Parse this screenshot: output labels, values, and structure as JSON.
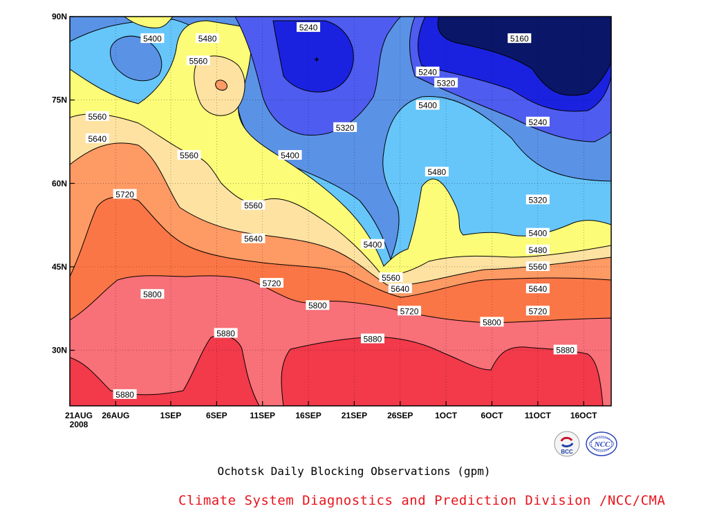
{
  "title": "Ochotsk Daily Blocking Observations (gpm)",
  "credit": "Climate System Diagnostics and Prediction Division /NCC/CMA",
  "logos": {
    "left_text": "BCC",
    "right_text": "NCC"
  },
  "chart_data": {
    "type": "contour",
    "title": "Ochotsk Daily Blocking Observations (gpm)",
    "x_ticks": [
      "21AUG",
      "26AUG",
      "1SEP",
      "6SEP",
      "11SEP",
      "16SEP",
      "21SEP",
      "26SEP",
      "1OCT",
      "6OCT",
      "11OCT",
      "16OCT"
    ],
    "x_year": "2008",
    "x_range": [
      "2008-08-21",
      "2008-10-19"
    ],
    "y_ticks": [
      "30N",
      "45N",
      "60N",
      "75N",
      "90N"
    ],
    "ylim": [
      20,
      90
    ],
    "contour_interval": 80,
    "levels": [
      5160,
      5240,
      5320,
      5400,
      5480,
      5560,
      5640,
      5720,
      5800,
      5880
    ],
    "colors": {
      "lt5160": "#0a1668",
      "5160_5240": "#1a22e0",
      "5240_5320": "#4e5cf0",
      "5320_5400": "#5a92e6",
      "5400_5480": "#66c6fa",
      "5480_5560": "#fcfc78",
      "5560_5640": "#fee2a2",
      "5640_5720": "#fe9a64",
      "5720_5800": "#fb7646",
      "5800_5880": "#f87078",
      "gt5880": "#f23a4a"
    },
    "contour_labels": [
      {
        "value": "5400",
        "date": "2008-08-30",
        "lat": 86
      },
      {
        "value": "5480",
        "date": "2008-09-05",
        "lat": 86
      },
      {
        "value": "5240",
        "date": "2008-09-16",
        "lat": 88
      },
      {
        "value": "5160",
        "date": "2008-10-09",
        "lat": 86
      },
      {
        "value": "5560",
        "date": "2008-09-04",
        "lat": 82
      },
      {
        "value": "5240",
        "date": "2008-09-29",
        "lat": 80
      },
      {
        "value": "5320",
        "date": "2008-10-01",
        "lat": 78
      },
      {
        "value": "5400",
        "date": "2008-09-29",
        "lat": 74
      },
      {
        "value": "5320",
        "date": "2008-09-20",
        "lat": 70
      },
      {
        "value": "5240",
        "date": "2008-10-11",
        "lat": 71
      },
      {
        "value": "5560",
        "date": "2008-08-24",
        "lat": 72
      },
      {
        "value": "5640",
        "date": "2008-08-24",
        "lat": 68
      },
      {
        "value": "5560",
        "date": "2008-09-03",
        "lat": 65
      },
      {
        "value": "5400",
        "date": "2008-09-14",
        "lat": 65
      },
      {
        "value": "5480",
        "date": "2008-09-30",
        "lat": 62
      },
      {
        "value": "5720",
        "date": "2008-08-27",
        "lat": 58
      },
      {
        "value": "5320",
        "date": "2008-10-11",
        "lat": 57
      },
      {
        "value": "5560",
        "date": "2008-09-10",
        "lat": 56
      },
      {
        "value": "5400",
        "date": "2008-10-11",
        "lat": 51
      },
      {
        "value": "5640",
        "date": "2008-09-10",
        "lat": 50
      },
      {
        "value": "5400",
        "date": "2008-09-23",
        "lat": 49
      },
      {
        "value": "5480",
        "date": "2008-10-11",
        "lat": 48
      },
      {
        "value": "5560",
        "date": "2008-10-11",
        "lat": 45
      },
      {
        "value": "5560",
        "date": "2008-09-25",
        "lat": 43
      },
      {
        "value": "5720",
        "date": "2008-09-12",
        "lat": 42
      },
      {
        "value": "5640",
        "date": "2008-10-11",
        "lat": 41
      },
      {
        "value": "5800",
        "date": "2008-08-30",
        "lat": 40
      },
      {
        "value": "5640",
        "date": "2008-09-26",
        "lat": 41
      },
      {
        "value": "5800",
        "date": "2008-09-17",
        "lat": 38
      },
      {
        "value": "5720",
        "date": "2008-09-27",
        "lat": 37
      },
      {
        "value": "5720",
        "date": "2008-10-11",
        "lat": 37
      },
      {
        "value": "5800",
        "date": "2008-10-06",
        "lat": 35
      },
      {
        "value": "5880",
        "date": "2008-09-07",
        "lat": 33
      },
      {
        "value": "5880",
        "date": "2008-09-23",
        "lat": 32
      },
      {
        "value": "5880",
        "date": "2008-10-14",
        "lat": 30
      },
      {
        "value": "5880",
        "date": "2008-08-27",
        "lat": 22
      }
    ]
  }
}
